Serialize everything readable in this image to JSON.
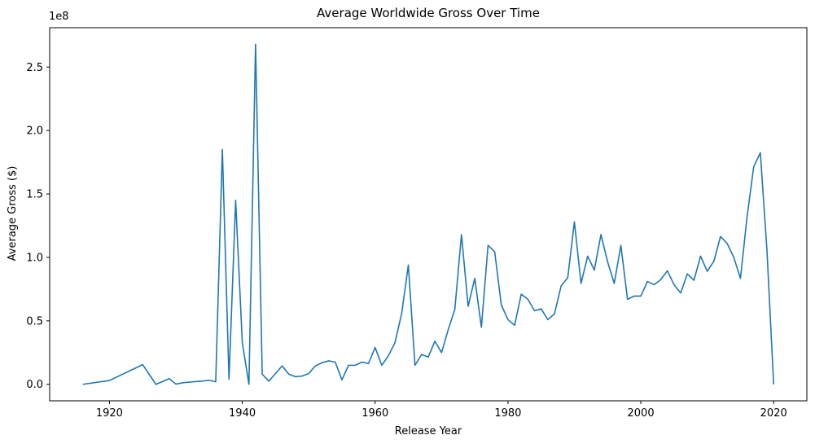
{
  "chart_data": {
    "type": "line",
    "title": "Average Worldwide Gross Over Time",
    "xlabel": "Release Year",
    "ylabel": "Average Gross ($)",
    "y_offset_text": "1e8",
    "xlim": [
      1911,
      2025
    ],
    "ylim": [
      -13000000.0,
      281000000.0
    ],
    "x_ticks": [
      1920,
      1940,
      1960,
      1980,
      2000,
      2020
    ],
    "x_tick_labels": [
      "1920",
      "1940",
      "1960",
      "1980",
      "2000",
      "2020"
    ],
    "y_ticks": [
      0,
      50000000,
      100000000,
      150000000,
      200000000,
      250000000
    ],
    "y_tick_labels": [
      "0.0",
      "0.5",
      "1.0",
      "1.5",
      "2.0",
      "2.5"
    ],
    "grid": false,
    "line_color": "#1f77b4",
    "series": [
      {
        "x": [
          1916,
          1920,
          1925,
          1927,
          1929,
          1930,
          1931,
          1933,
          1934,
          1935,
          1936,
          1937,
          1938,
          1939,
          1940,
          1941,
          1942,
          1943,
          1944,
          1945,
          1946,
          1947,
          1948,
          1949,
          1950,
          1951,
          1952,
          1953,
          1954,
          1955,
          1956,
          1957,
          1958,
          1959,
          1960,
          1961,
          1962,
          1963,
          1964,
          1965,
          1966,
          1967,
          1968,
          1969,
          1970,
          1971,
          1972,
          1973,
          1974,
          1975,
          1976,
          1977,
          1978,
          1979,
          1980,
          1981,
          1982,
          1983,
          1984,
          1985,
          1986,
          1987,
          1988,
          1989,
          1990,
          1991,
          1992,
          1993,
          1994,
          1995,
          1996,
          1997,
          1998,
          1999,
          2000,
          2001,
          2002,
          2003,
          2004,
          2005,
          2006,
          2007,
          2008,
          2009,
          2010,
          2011,
          2012,
          2013,
          2014,
          2015,
          2016,
          2017,
          2018,
          2019,
          2020
        ],
        "values": [
          0,
          3000000,
          15500000,
          0,
          4500000,
          200000,
          1200000,
          2200000,
          2500000,
          3200000,
          2000000,
          185000000,
          4000000,
          145000000,
          33000000,
          0,
          268000000,
          8000000,
          2500000,
          8500000,
          14500000,
          8000000,
          6000000,
          6500000,
          8500000,
          14500000,
          17000000,
          18500000,
          17500000,
          3500000,
          15000000,
          15000000,
          17500000,
          16500000,
          29000000,
          15000000,
          22500000,
          33000000,
          56000000,
          94000000,
          15000000,
          23500000,
          21500000,
          34000000,
          25000000,
          43000000,
          59000000,
          118000000,
          61500000,
          83500000,
          45000000,
          109500000,
          104500000,
          62500000,
          51000000,
          46500000,
          71000000,
          67000000,
          58000000,
          59500000,
          51000000,
          55500000,
          77500000,
          84000000,
          128000000,
          79500000,
          101000000,
          90000000,
          118000000,
          96500000,
          79500000,
          109500000,
          67000000,
          69500000,
          69500000,
          81000000,
          78500000,
          82500000,
          89500000,
          78500000,
          72000000,
          87000000,
          82000000,
          101000000,
          89000000,
          97000000,
          116500000,
          111000000,
          100000000,
          83500000,
          132000000,
          171500000,
          182500000,
          105000000,
          0
        ]
      }
    ]
  }
}
